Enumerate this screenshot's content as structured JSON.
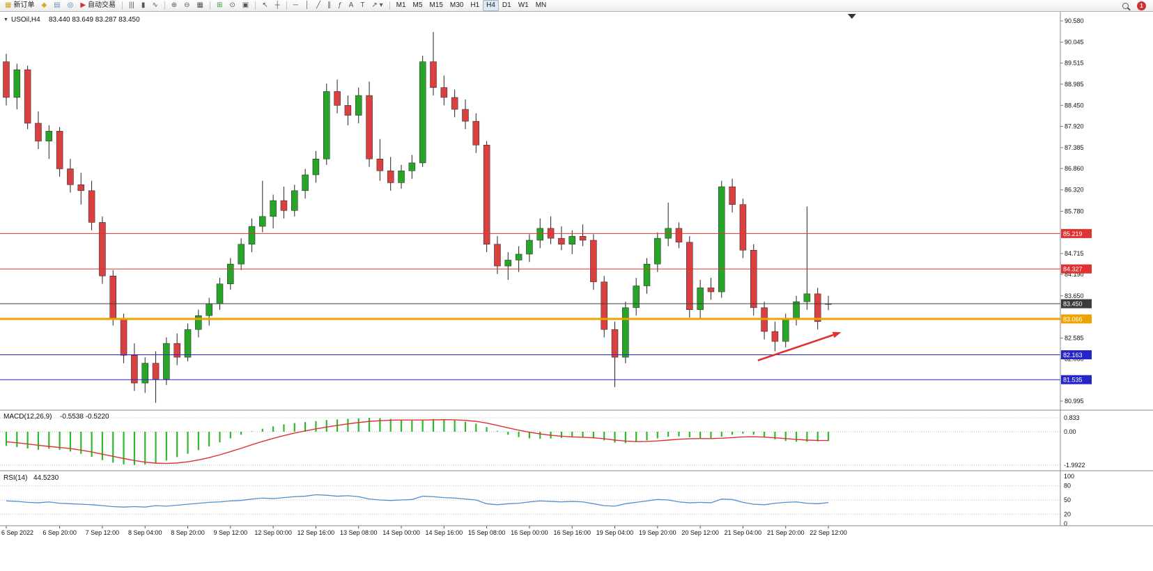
{
  "toolbar": {
    "groups": [
      {
        "name": "trade",
        "items": [
          {
            "name": "new-order-button",
            "glyph": "▦",
            "glyph_color": "#c9a227",
            "label": "新订单"
          },
          {
            "name": "window-icon",
            "glyph": "◆",
            "glyph_color": "#d9a62e"
          },
          {
            "name": "print-icon",
            "glyph": "▤",
            "glyph_color": "#6b8fb5"
          },
          {
            "name": "community-icon",
            "glyph": "◎",
            "glyph_color": "#4a7dbd"
          },
          {
            "name": "autotrading-button",
            "glyph": "▶",
            "glyph_color": "#cc3333",
            "label": "自动交易"
          }
        ]
      },
      {
        "name": "chart-types",
        "items": [
          {
            "name": "bars-chart-button",
            "glyph": "|||"
          },
          {
            "name": "candles-chart-button",
            "glyph": "▮"
          },
          {
            "name": "line-chart-button",
            "glyph": "∿"
          }
        ]
      },
      {
        "name": "zoom",
        "items": [
          {
            "name": "zoom-in-button",
            "glyph": "⊕"
          },
          {
            "name": "zoom-out-button",
            "glyph": "⊖"
          },
          {
            "name": "grid-button",
            "glyph": "▦"
          }
        ]
      },
      {
        "name": "windows",
        "items": [
          {
            "name": "indicators-button",
            "glyph": "⊞",
            "glyph_color": "#3a9a3a"
          },
          {
            "name": "period-button",
            "glyph": "⊙"
          },
          {
            "name": "snapshot-button",
            "glyph": "▣"
          }
        ]
      },
      {
        "name": "pointer",
        "items": [
          {
            "name": "cursor-button",
            "glyph": "↖"
          },
          {
            "name": "crosshair-button",
            "glyph": "┼"
          }
        ]
      },
      {
        "name": "objects",
        "items": [
          {
            "name": "hline-tool-button",
            "glyph": "─"
          },
          {
            "name": "vline-tool-button",
            "glyph": "│"
          },
          {
            "name": "trendline-tool-button",
            "glyph": "╱"
          },
          {
            "name": "channel-tool-button",
            "glyph": "∥"
          },
          {
            "name": "fibonacci-tool-button",
            "glyph": "ƒ"
          },
          {
            "name": "text-tool-button",
            "glyph": "A"
          },
          {
            "name": "label-tool-button",
            "glyph": "T"
          },
          {
            "name": "arrows-tool-button",
            "glyph": "↗ ▾"
          }
        ]
      },
      {
        "name": "timeframes",
        "items": [
          {
            "name": "tf-m1-button",
            "label": "M1"
          },
          {
            "name": "tf-m5-button",
            "label": "M5"
          },
          {
            "name": "tf-m15-button",
            "label": "M15"
          },
          {
            "name": "tf-m30-button",
            "label": "M30"
          },
          {
            "name": "tf-h1-button",
            "label": "H1"
          },
          {
            "name": "tf-h4-button",
            "label": "H4",
            "active": true
          },
          {
            "name": "tf-d1-button",
            "label": "D1"
          },
          {
            "name": "tf-w1-button",
            "label": "W1"
          },
          {
            "name": "tf-mn-button",
            "label": "MN"
          }
        ]
      }
    ],
    "right_items": [
      {
        "name": "search-icon",
        "type": "search"
      },
      {
        "name": "alert-badge",
        "type": "badge",
        "label": "1",
        "color": "#d03030"
      }
    ]
  },
  "chart": {
    "collapse_glyph": "▼",
    "symbol_period": "USOil,H4",
    "ohlc_text": "83.440 83.649 83.287 83.450"
  },
  "price_axis": {
    "grid_labels": [
      "90.580",
      "90.045",
      "89.515",
      "88.985",
      "88.450",
      "87.920",
      "87.385",
      "86.860",
      "86.320",
      "85.780",
      "84.715",
      "84.190",
      "83.650",
      "82.585",
      "82.060",
      "80.995"
    ]
  },
  "hlines": [
    {
      "name": "resistance-1",
      "price": 85.219,
      "label": "85.219",
      "color": "#e03232",
      "width": 1
    },
    {
      "name": "resistance-2",
      "price": 84.327,
      "label": "84.327",
      "color": "#e03232",
      "width": 1
    },
    {
      "name": "current-price",
      "price": 83.45,
      "label": "83.450",
      "color": "#3c3c3c",
      "width": 1
    },
    {
      "name": "support-orange",
      "price": 83.066,
      "label": "83.066",
      "color": "#efa300",
      "width": 3
    },
    {
      "name": "support-blue-1",
      "price": 82.163,
      "label": "82.163",
      "color": "#2525c8",
      "width": 1
    },
    {
      "name": "support-blue-2",
      "price": 81.535,
      "label": "81.535",
      "color": "#2525c8",
      "width": 1
    }
  ],
  "chart_data": {
    "type": "candlestick",
    "symbol": "USOil",
    "timeframe": "H4",
    "up_color": "#28a428",
    "down_color": "#d94040",
    "candles": [
      [
        89.55,
        89.75,
        88.45,
        88.65
      ],
      [
        88.65,
        89.5,
        88.35,
        89.35
      ],
      [
        89.35,
        89.45,
        87.85,
        88.0
      ],
      [
        88.0,
        88.3,
        87.35,
        87.55
      ],
      [
        87.55,
        87.95,
        87.1,
        87.8
      ],
      [
        87.8,
        87.9,
        86.65,
        86.85
      ],
      [
        86.85,
        87.1,
        86.25,
        86.45
      ],
      [
        86.45,
        86.75,
        85.95,
        86.3
      ],
      [
        86.3,
        86.55,
        85.3,
        85.5
      ],
      [
        85.5,
        85.65,
        83.95,
        84.15
      ],
      [
        84.15,
        84.3,
        82.9,
        83.05
      ],
      [
        83.05,
        83.2,
        81.95,
        82.15
      ],
      [
        82.15,
        82.45,
        81.25,
        81.45
      ],
      [
        81.45,
        82.1,
        81.2,
        81.95
      ],
      [
        81.95,
        82.25,
        80.95,
        81.55
      ],
      [
        81.55,
        82.6,
        81.4,
        82.45
      ],
      [
        82.45,
        82.7,
        81.9,
        82.1
      ],
      [
        82.1,
        82.95,
        82.0,
        82.8
      ],
      [
        82.8,
        83.3,
        82.6,
        83.15
      ],
      [
        83.15,
        83.6,
        82.9,
        83.45
      ],
      [
        83.45,
        84.1,
        83.3,
        83.95
      ],
      [
        83.95,
        84.6,
        83.8,
        84.45
      ],
      [
        84.45,
        85.1,
        84.3,
        84.95
      ],
      [
        84.95,
        85.6,
        84.75,
        85.4
      ],
      [
        85.4,
        86.55,
        85.25,
        85.65
      ],
      [
        85.65,
        86.2,
        85.35,
        86.05
      ],
      [
        86.05,
        86.4,
        85.6,
        85.8
      ],
      [
        85.8,
        86.45,
        85.65,
        86.3
      ],
      [
        86.3,
        86.85,
        86.1,
        86.7
      ],
      [
        86.7,
        87.3,
        86.5,
        87.1
      ],
      [
        87.1,
        89.0,
        86.95,
        88.8
      ],
      [
        88.8,
        89.1,
        88.25,
        88.45
      ],
      [
        88.45,
        88.7,
        87.95,
        88.2
      ],
      [
        88.2,
        88.9,
        88.0,
        88.7
      ],
      [
        88.7,
        89.05,
        86.9,
        87.1
      ],
      [
        87.1,
        87.6,
        86.55,
        86.8
      ],
      [
        86.8,
        87.15,
        86.3,
        86.5
      ],
      [
        86.5,
        86.95,
        86.35,
        86.8
      ],
      [
        86.8,
        87.2,
        86.6,
        87.0
      ],
      [
        87.0,
        89.7,
        86.9,
        89.55
      ],
      [
        89.55,
        90.3,
        88.7,
        88.9
      ],
      [
        88.9,
        89.2,
        88.45,
        88.65
      ],
      [
        88.65,
        88.85,
        88.15,
        88.35
      ],
      [
        88.35,
        88.6,
        87.85,
        88.05
      ],
      [
        88.05,
        88.25,
        87.25,
        87.45
      ],
      [
        87.45,
        87.55,
        84.75,
        84.95
      ],
      [
        84.95,
        85.15,
        84.2,
        84.4
      ],
      [
        84.4,
        84.75,
        84.05,
        84.55
      ],
      [
        84.55,
        84.9,
        84.25,
        84.7
      ],
      [
        84.7,
        85.2,
        84.5,
        85.05
      ],
      [
        85.05,
        85.6,
        84.85,
        85.35
      ],
      [
        85.35,
        85.65,
        84.95,
        85.1
      ],
      [
        85.1,
        85.4,
        84.8,
        84.95
      ],
      [
        84.95,
        85.3,
        84.7,
        85.15
      ],
      [
        85.15,
        85.45,
        84.9,
        85.05
      ],
      [
        85.05,
        85.2,
        83.8,
        84.0
      ],
      [
        84.0,
        84.15,
        82.6,
        82.8
      ],
      [
        82.8,
        83.0,
        81.35,
        82.1
      ],
      [
        82.1,
        83.5,
        81.95,
        83.35
      ],
      [
        83.35,
        84.1,
        83.15,
        83.9
      ],
      [
        83.9,
        84.6,
        83.7,
        84.45
      ],
      [
        84.45,
        85.25,
        84.25,
        85.1
      ],
      [
        85.1,
        86.0,
        84.9,
        85.35
      ],
      [
        85.35,
        85.5,
        84.85,
        85.0
      ],
      [
        85.0,
        85.15,
        83.1,
        83.3
      ],
      [
        83.3,
        84.05,
        83.05,
        83.85
      ],
      [
        83.85,
        84.1,
        83.55,
        83.75
      ],
      [
        83.75,
        86.55,
        83.6,
        86.4
      ],
      [
        86.4,
        86.6,
        85.75,
        85.95
      ],
      [
        85.95,
        86.1,
        84.6,
        84.8
      ],
      [
        84.8,
        84.95,
        83.15,
        83.35
      ],
      [
        83.35,
        83.5,
        82.55,
        82.75
      ],
      [
        82.75,
        83.0,
        82.25,
        82.5
      ],
      [
        82.5,
        83.2,
        82.35,
        83.05
      ],
      [
        83.05,
        83.65,
        82.9,
        83.5
      ],
      [
        83.5,
        85.9,
        83.3,
        83.7
      ],
      [
        83.7,
        83.85,
        82.8,
        83.0
      ],
      [
        83.44,
        83.649,
        83.287,
        83.45
      ]
    ],
    "time_labels": [
      {
        "text": "6 Sep 2022",
        "bar": 0
      },
      {
        "text": "6 Sep 20:00",
        "bar": 5
      },
      {
        "text": "7 Sep 12:00",
        "bar": 9
      },
      {
        "text": "8 Sep 04:00",
        "bar": 13
      },
      {
        "text": "8 Sep 20:00",
        "bar": 17
      },
      {
        "text": "9 Sep 12:00",
        "bar": 21
      },
      {
        "text": "12 Sep 00:00",
        "bar": 25
      },
      {
        "text": "12 Sep 16:00",
        "bar": 29
      },
      {
        "text": "13 Sep 08:00",
        "bar": 33
      },
      {
        "text": "14 Sep 00:00",
        "bar": 37
      },
      {
        "text": "14 Sep 16:00",
        "bar": 41
      },
      {
        "text": "15 Sep 08:00",
        "bar": 45
      },
      {
        "text": "16 Sep 00:00",
        "bar": 49
      },
      {
        "text": "16 Sep 16:00",
        "bar": 53
      },
      {
        "text": "19 Sep 04:00",
        "bar": 57
      },
      {
        "text": "19 Sep 20:00",
        "bar": 61
      },
      {
        "text": "20 Sep 12:00",
        "bar": 65
      },
      {
        "text": "21 Sep 04:00",
        "bar": 69
      },
      {
        "text": "21 Sep 20:00",
        "bar": 73
      },
      {
        "text": "22 Sep 12:00",
        "bar": 77
      }
    ]
  },
  "macd": {
    "label": "MACD(12,26,9)",
    "values_text": "-0.5538 -0.5220",
    "axis_labels": [
      "0.833",
      "0.00",
      "-1.9922"
    ],
    "hist_color": "#2eb82e",
    "signal_color": "#e03030",
    "histogram": [
      -0.85,
      -0.92,
      -1.0,
      -1.08,
      -1.02,
      -1.08,
      -1.18,
      -1.32,
      -1.5,
      -1.7,
      -1.85,
      -1.95,
      -1.99,
      -1.96,
      -1.88,
      -1.72,
      -1.52,
      -1.32,
      -1.1,
      -0.88,
      -0.64,
      -0.4,
      -0.18,
      0.02,
      0.18,
      0.32,
      0.44,
      0.52,
      0.58,
      0.63,
      0.7,
      0.74,
      0.77,
      0.8,
      0.83,
      0.81,
      0.77,
      0.73,
      0.7,
      0.72,
      0.76,
      0.74,
      0.68,
      0.6,
      0.48,
      0.28,
      0.05,
      -0.18,
      -0.32,
      -0.4,
      -0.42,
      -0.4,
      -0.37,
      -0.33,
      -0.32,
      -0.4,
      -0.52,
      -0.65,
      -0.68,
      -0.62,
      -0.52,
      -0.4,
      -0.3,
      -0.28,
      -0.33,
      -0.38,
      -0.38,
      -0.3,
      -0.18,
      -0.12,
      -0.18,
      -0.32,
      -0.45,
      -0.55,
      -0.6,
      -0.6,
      -0.58,
      -0.5538
    ],
    "signal": [
      -0.6,
      -0.66,
      -0.73,
      -0.81,
      -0.88,
      -0.94,
      -1.01,
      -1.1,
      -1.21,
      -1.34,
      -1.47,
      -1.6,
      -1.72,
      -1.82,
      -1.88,
      -1.9,
      -1.87,
      -1.8,
      -1.69,
      -1.55,
      -1.38,
      -1.19,
      -0.99,
      -0.78,
      -0.58,
      -0.4,
      -0.23,
      -0.08,
      0.05,
      0.17,
      0.28,
      0.38,
      0.47,
      0.55,
      0.62,
      0.66,
      0.69,
      0.7,
      0.7,
      0.7,
      0.71,
      0.72,
      0.71,
      0.68,
      0.62,
      0.52,
      0.38,
      0.23,
      0.09,
      -0.03,
      -0.13,
      -0.21,
      -0.27,
      -0.31,
      -0.33,
      -0.36,
      -0.42,
      -0.5,
      -0.56,
      -0.59,
      -0.58,
      -0.55,
      -0.5,
      -0.45,
      -0.42,
      -0.41,
      -0.41,
      -0.39,
      -0.35,
      -0.31,
      -0.3,
      -0.32,
      -0.36,
      -0.41,
      -0.46,
      -0.5,
      -0.52,
      -0.522
    ]
  },
  "rsi": {
    "label": "RSI(14)",
    "value_text": "44.5230",
    "axis_labels": [
      "100",
      "80",
      "50",
      "20",
      "0"
    ],
    "levels": [
      80,
      50,
      20
    ],
    "line_color": "#4f8fd0",
    "values": [
      48,
      47,
      45,
      44,
      46,
      43,
      42,
      41,
      40,
      38,
      36,
      35,
      36,
      35,
      38,
      37,
      39,
      41,
      43,
      45,
      46,
      48,
      49,
      52,
      54,
      53,
      55,
      57,
      58,
      61,
      60,
      58,
      59,
      57,
      52,
      50,
      49,
      50,
      51,
      58,
      57,
      55,
      54,
      52,
      50,
      42,
      40,
      42,
      43,
      46,
      48,
      47,
      46,
      47,
      46,
      42,
      38,
      37,
      42,
      45,
      48,
      51,
      50,
      46,
      44,
      45,
      44,
      52,
      51,
      45,
      41,
      40,
      43,
      45,
      46,
      43,
      42,
      44.52
    ]
  },
  "annotations": {
    "trend_arrow": {
      "from_bar": 70.4,
      "from_price": 82.02,
      "to_bar": 78.2,
      "to_price": 82.73,
      "color": "#e03030"
    },
    "shift_marker_bar": 79.2
  }
}
